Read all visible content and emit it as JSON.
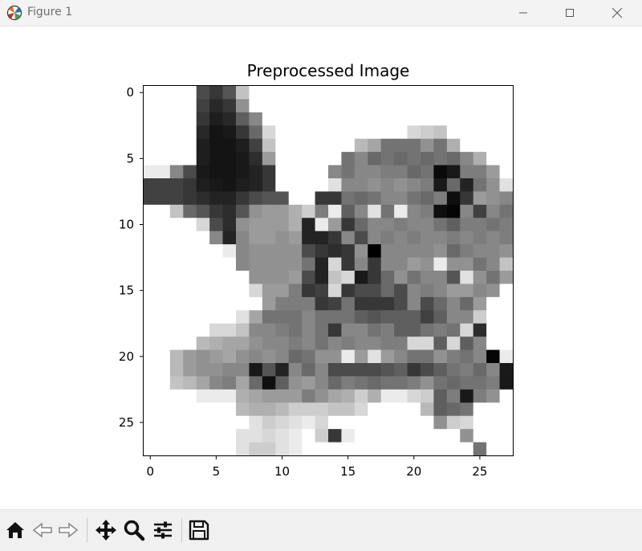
{
  "window": {
    "title": "Figure 1",
    "app_icon": "matplotlib-icon",
    "controls": [
      "minimize-icon",
      "maximize-icon",
      "close-icon"
    ]
  },
  "chart_data": {
    "type": "heatmap",
    "title": "Preprocessed Image",
    "colormap": "gray_r",
    "value_range": [
      0,
      255
    ],
    "xlim": [
      -0.5,
      27.5
    ],
    "ylim": [
      27.5,
      -0.5
    ],
    "xticks": [
      "0",
      "5",
      "10",
      "15",
      "20",
      "25"
    ],
    "yticks": [
      "0",
      "5",
      "10",
      "15",
      "20",
      "25"
    ],
    "grid": false,
    "matrix": [
      [
        0,
        0,
        0,
        0,
        180,
        200,
        170,
        60,
        0,
        0,
        0,
        0,
        0,
        0,
        0,
        0,
        0,
        0,
        0,
        0,
        0,
        0,
        0,
        0,
        0,
        0,
        0,
        0
      ],
      [
        0,
        0,
        0,
        0,
        190,
        215,
        200,
        110,
        0,
        0,
        0,
        0,
        0,
        0,
        0,
        0,
        0,
        0,
        0,
        0,
        0,
        0,
        0,
        0,
        0,
        0,
        0,
        0
      ],
      [
        0,
        0,
        0,
        0,
        200,
        225,
        215,
        160,
        120,
        0,
        0,
        0,
        0,
        0,
        0,
        0,
        0,
        0,
        0,
        0,
        0,
        0,
        0,
        0,
        0,
        0,
        0,
        0
      ],
      [
        0,
        0,
        0,
        0,
        215,
        235,
        230,
        200,
        150,
        40,
        0,
        0,
        0,
        0,
        0,
        0,
        0,
        0,
        0,
        0,
        40,
        50,
        60,
        0,
        0,
        0,
        0,
        0
      ],
      [
        0,
        0,
        0,
        0,
        225,
        235,
        235,
        225,
        190,
        60,
        0,
        0,
        0,
        0,
        0,
        0,
        70,
        90,
        140,
        140,
        140,
        110,
        140,
        80,
        0,
        0,
        0,
        0
      ],
      [
        0,
        0,
        0,
        0,
        225,
        235,
        235,
        230,
        210,
        100,
        0,
        0,
        0,
        0,
        0,
        140,
        120,
        150,
        140,
        150,
        140,
        150,
        140,
        150,
        120,
        80,
        0,
        0
      ],
      [
        20,
        20,
        120,
        180,
        230,
        235,
        235,
        230,
        220,
        200,
        0,
        0,
        0,
        0,
        120,
        140,
        120,
        120,
        130,
        130,
        150,
        140,
        245,
        230,
        130,
        130,
        100,
        0
      ],
      [
        190,
        190,
        190,
        200,
        225,
        230,
        235,
        225,
        220,
        200,
        0,
        0,
        0,
        0,
        30,
        120,
        120,
        110,
        120,
        110,
        120,
        130,
        230,
        150,
        220,
        140,
        110,
        30
      ],
      [
        190,
        190,
        190,
        200,
        210,
        220,
        220,
        200,
        180,
        170,
        170,
        0,
        0,
        200,
        200,
        140,
        150,
        140,
        120,
        120,
        140,
        150,
        130,
        240,
        200,
        100,
        110,
        120
      ],
      [
        0,
        0,
        60,
        150,
        170,
        200,
        210,
        170,
        110,
        100,
        100,
        80,
        50,
        130,
        20,
        160,
        120,
        30,
        140,
        20,
        120,
        130,
        240,
        250,
        120,
        190,
        120,
        140
      ],
      [
        0,
        0,
        0,
        0,
        40,
        180,
        210,
        110,
        100,
        100,
        100,
        80,
        220,
        20,
        100,
        200,
        150,
        120,
        120,
        130,
        120,
        120,
        140,
        160,
        130,
        130,
        140,
        130
      ],
      [
        0,
        0,
        0,
        0,
        0,
        120,
        220,
        120,
        100,
        100,
        110,
        100,
        220,
        220,
        200,
        120,
        180,
        120,
        130,
        120,
        130,
        120,
        120,
        130,
        120,
        130,
        120,
        130
      ],
      [
        0,
        0,
        0,
        0,
        0,
        0,
        20,
        120,
        110,
        110,
        110,
        110,
        180,
        200,
        210,
        200,
        110,
        255,
        120,
        120,
        120,
        120,
        110,
        150,
        130,
        120,
        120,
        110
      ],
      [
        0,
        0,
        0,
        0,
        0,
        0,
        0,
        120,
        110,
        110,
        110,
        110,
        140,
        220,
        40,
        200,
        120,
        200,
        120,
        120,
        100,
        110,
        20,
        110,
        110,
        140,
        120,
        60
      ],
      [
        0,
        0,
        0,
        0,
        0,
        0,
        0,
        0,
        110,
        110,
        110,
        100,
        180,
        220,
        60,
        40,
        230,
        200,
        150,
        110,
        140,
        120,
        120,
        170,
        30,
        110,
        140,
        100
      ],
      [
        0,
        0,
        0,
        0,
        0,
        0,
        0,
        0,
        40,
        100,
        100,
        130,
        200,
        190,
        40,
        200,
        180,
        180,
        150,
        180,
        120,
        130,
        120,
        100,
        100,
        120,
        110,
        0
      ],
      [
        0,
        0,
        0,
        0,
        0,
        0,
        0,
        0,
        0,
        100,
        130,
        130,
        130,
        200,
        190,
        140,
        200,
        200,
        200,
        180,
        120,
        180,
        150,
        120,
        150,
        100,
        0,
        0
      ],
      [
        0,
        0,
        0,
        0,
        0,
        0,
        0,
        30,
        90,
        140,
        140,
        140,
        120,
        140,
        140,
        140,
        160,
        170,
        160,
        160,
        160,
        190,
        160,
        120,
        120,
        50,
        0,
        0
      ],
      [
        0,
        0,
        0,
        0,
        0,
        40,
        40,
        60,
        120,
        120,
        130,
        140,
        120,
        140,
        200,
        120,
        120,
        140,
        130,
        160,
        160,
        140,
        130,
        140,
        40,
        210,
        0,
        0
      ],
      [
        0,
        0,
        0,
        0,
        70,
        80,
        90,
        90,
        110,
        120,
        120,
        130,
        120,
        140,
        120,
        130,
        120,
        120,
        130,
        130,
        40,
        40,
        160,
        40,
        160,
        120,
        0,
        0
      ],
      [
        0,
        0,
        70,
        100,
        110,
        100,
        90,
        110,
        120,
        110,
        120,
        150,
        140,
        110,
        110,
        20,
        100,
        30,
        100,
        120,
        140,
        140,
        110,
        130,
        140,
        120,
        250,
        20
      ],
      [
        0,
        0,
        70,
        100,
        110,
        110,
        120,
        120,
        230,
        170,
        220,
        120,
        150,
        120,
        180,
        180,
        180,
        180,
        170,
        160,
        200,
        180,
        160,
        140,
        130,
        150,
        120,
        230
      ],
      [
        0,
        0,
        60,
        70,
        90,
        120,
        130,
        90,
        150,
        240,
        160,
        110,
        100,
        120,
        150,
        130,
        140,
        150,
        140,
        140,
        130,
        110,
        140,
        150,
        140,
        140,
        130,
        230
      ],
      [
        0,
        0,
        0,
        0,
        20,
        20,
        20,
        80,
        90,
        100,
        100,
        100,
        130,
        110,
        90,
        80,
        50,
        80,
        20,
        20,
        40,
        50,
        160,
        130,
        230,
        130,
        110,
        0
      ],
      [
        0,
        0,
        0,
        0,
        0,
        0,
        0,
        70,
        80,
        80,
        70,
        50,
        50,
        50,
        60,
        60,
        40,
        0,
        0,
        0,
        0,
        70,
        160,
        150,
        140,
        0,
        0,
        0
      ],
      [
        0,
        0,
        0,
        0,
        0,
        0,
        0,
        0,
        30,
        50,
        40,
        30,
        20,
        40,
        0,
        0,
        0,
        0,
        0,
        0,
        0,
        0,
        110,
        50,
        40,
        0,
        0,
        0
      ],
      [
        0,
        0,
        0,
        0,
        0,
        0,
        0,
        30,
        30,
        40,
        30,
        20,
        0,
        50,
        200,
        20,
        0,
        0,
        0,
        0,
        0,
        0,
        0,
        0,
        110,
        0,
        0,
        0
      ],
      [
        0,
        0,
        0,
        0,
        0,
        0,
        0,
        30,
        50,
        50,
        30,
        20,
        0,
        0,
        0,
        0,
        0,
        0,
        0,
        0,
        0,
        0,
        0,
        0,
        0,
        140,
        0,
        0
      ]
    ]
  },
  "toolbar": {
    "items": [
      "home-icon",
      "back-icon",
      "forward-icon",
      "pan-icon",
      "zoom-icon",
      "configure-subplots-icon",
      "save-icon"
    ]
  }
}
